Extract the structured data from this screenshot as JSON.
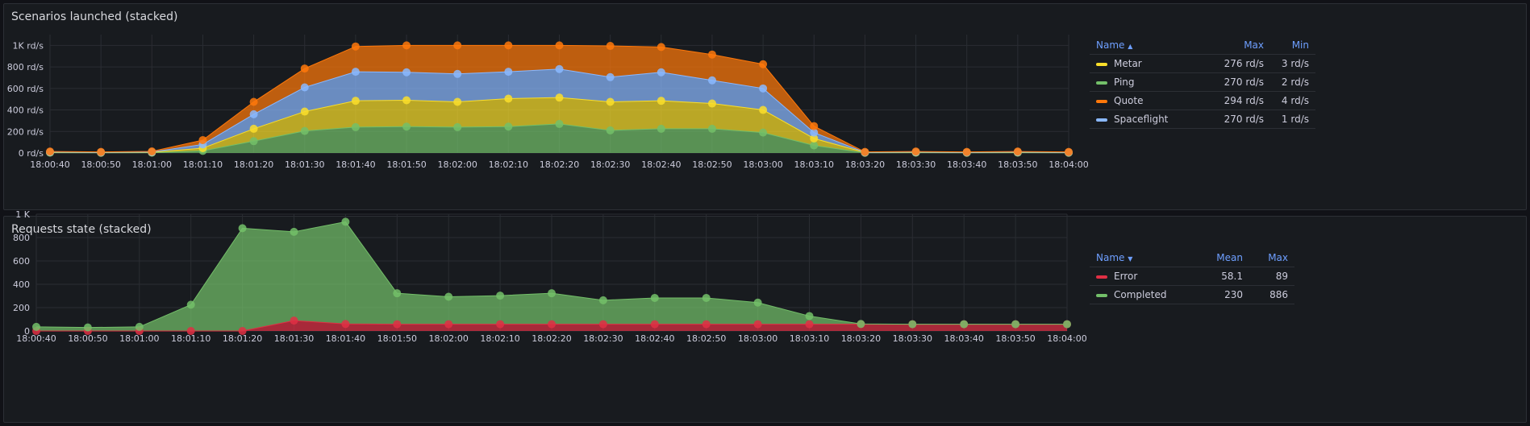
{
  "panels": [
    {
      "title": "Scenarios launched (stacked)",
      "legend": {
        "columns": [
          "Name",
          "Max",
          "Min"
        ],
        "sort_icon": "chevron-up-icon",
        "rows": [
          {
            "name": "Metar",
            "color": "#fade2a",
            "cells": [
              "276 rd/s",
              "3 rd/s"
            ]
          },
          {
            "name": "Ping",
            "color": "#73bf69",
            "cells": [
              "270 rd/s",
              "2 rd/s"
            ]
          },
          {
            "name": "Quote",
            "color": "#ff780a",
            "cells": [
              "294 rd/s",
              "4 rd/s"
            ]
          },
          {
            "name": "Spaceflight",
            "color": "#8ab8ff",
            "cells": [
              "270 rd/s",
              "1 rd/s"
            ]
          }
        ]
      }
    },
    {
      "title": "Requests state (stacked)",
      "legend": {
        "columns": [
          "Name",
          "Mean",
          "Max"
        ],
        "sort_icon": "chevron-down-icon",
        "rows": [
          {
            "name": "Error",
            "color": "#e02f44",
            "cells": [
              "58.1",
              "89"
            ]
          },
          {
            "name": "Completed",
            "color": "#73bf69",
            "cells": [
              "230",
              "886"
            ]
          }
        ]
      }
    }
  ],
  "chart_data": [
    {
      "type": "area",
      "stacked": true,
      "title": "Scenarios launched (stacked)",
      "x": [
        "18:00:40",
        "18:00:50",
        "18:01:00",
        "18:01:10",
        "18:01:20",
        "18:01:30",
        "18:01:40",
        "18:01:50",
        "18:02:00",
        "18:02:10",
        "18:02:20",
        "18:02:30",
        "18:02:40",
        "18:02:50",
        "18:03:00",
        "18:03:10",
        "18:03:20",
        "18:03:30",
        "18:03:40",
        "18:03:50",
        "18:04:00"
      ],
      "ylim": [
        0,
        1100
      ],
      "yticks": [
        0,
        200,
        400,
        600,
        800,
        1000
      ],
      "ytick_labels": [
        "0 rd/s",
        "200 rd/s",
        "400 rd/s",
        "600 rd/s",
        "800 rd/s",
        "1K rd/s"
      ],
      "grid": true,
      "legend_position": "right",
      "series": [
        {
          "name": "Ping",
          "color": "#73bf69",
          "values": [
            3,
            2,
            3,
            20,
            110,
            205,
            240,
            245,
            240,
            245,
            270,
            210,
            225,
            225,
            190,
            70,
            2,
            3,
            2,
            3,
            2
          ]
        },
        {
          "name": "Metar",
          "color": "#fade2a",
          "values": [
            4,
            3,
            4,
            25,
            115,
            180,
            245,
            245,
            235,
            260,
            245,
            265,
            260,
            235,
            210,
            65,
            3,
            4,
            3,
            4,
            3
          ]
        },
        {
          "name": "Spaceflight",
          "color": "#8ab8ff",
          "values": [
            2,
            1,
            2,
            35,
            135,
            225,
            270,
            260,
            260,
            250,
            265,
            230,
            265,
            215,
            200,
            55,
            1,
            2,
            1,
            2,
            1
          ]
        },
        {
          "name": "Quote",
          "color": "#ff780a",
          "values": [
            5,
            4,
            6,
            40,
            115,
            175,
            235,
            250,
            265,
            245,
            220,
            290,
            235,
            240,
            225,
            60,
            4,
            5,
            4,
            5,
            4
          ]
        }
      ]
    },
    {
      "type": "area",
      "stacked": true,
      "title": "Requests state (stacked)",
      "x": [
        "18:00:40",
        "18:00:50",
        "18:01:00",
        "18:01:10",
        "18:01:20",
        "18:01:30",
        "18:01:40",
        "18:01:50",
        "18:02:00",
        "18:02:10",
        "18:02:20",
        "18:02:30",
        "18:02:40",
        "18:02:50",
        "18:03:00",
        "18:03:10",
        "18:03:20",
        "18:03:30",
        "18:03:40",
        "18:03:50",
        "18:04:00"
      ],
      "ylim": [
        0,
        1000
      ],
      "yticks": [
        0,
        200,
        400,
        600,
        800,
        1000
      ],
      "ytick_labels": [
        "0",
        "200",
        "400",
        "600",
        "800",
        "1 K"
      ],
      "grid": true,
      "legend_position": "right",
      "series": [
        {
          "name": "Error",
          "color": "#e02f44",
          "values": [
            0,
            0,
            0,
            0,
            0,
            89,
            60,
            58,
            58,
            58,
            58,
            58,
            58,
            58,
            58,
            58,
            58,
            58,
            58,
            58,
            58
          ]
        },
        {
          "name": "Completed",
          "color": "#73bf69",
          "values": [
            35,
            30,
            35,
            225,
            880,
            760,
            875,
            265,
            235,
            245,
            265,
            205,
            225,
            225,
            185,
            70,
            2,
            0,
            0,
            0,
            0
          ]
        }
      ]
    }
  ]
}
